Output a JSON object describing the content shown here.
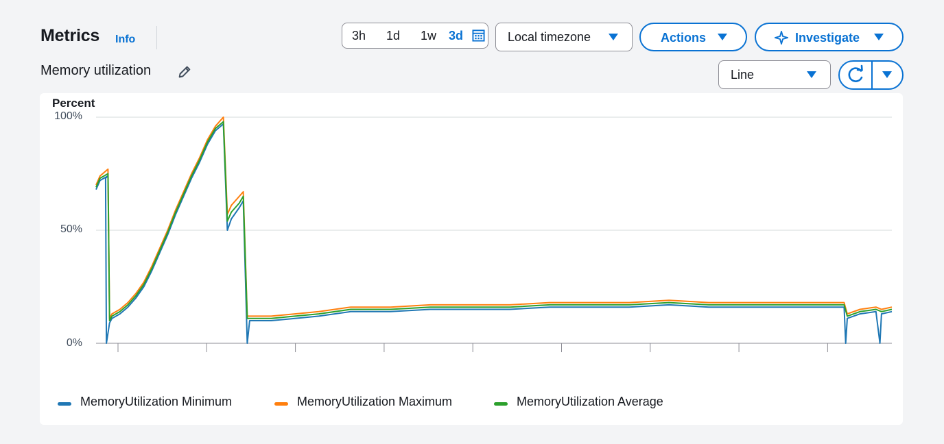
{
  "header": {
    "title": "Metrics",
    "info": "Info",
    "metric_name": "Memory utilization"
  },
  "toolbar": {
    "ranges": [
      "3h",
      "1d",
      "1w",
      "3d"
    ],
    "active_range": "3d",
    "timezone": "Local timezone",
    "actions_label": "Actions",
    "investigate_label": "Investigate",
    "chart_type": "Line"
  },
  "icons": {
    "edit": "pencil-icon",
    "calendar": "calendar-icon",
    "investigate": "sparkle-icon",
    "refresh": "refresh-icon",
    "dropdown": "caret-down-icon"
  },
  "colors": {
    "accent": "#0972d3",
    "minimum": "#1f77b4",
    "maximum": "#ff7f0e",
    "average": "#2ca02c"
  },
  "chart_data": {
    "type": "line",
    "ylabel": "Percent",
    "y_ticks": [
      "100%",
      "50%",
      "0%"
    ],
    "ylim": [
      0,
      100
    ],
    "xlim": [
      0,
      100
    ],
    "grid": true,
    "legend_position": "bottom-left",
    "series": [
      {
        "name": "MemoryUtilization Minimum",
        "color": "#1f77b4",
        "points": [
          [
            0,
            68
          ],
          [
            0.5,
            72
          ],
          [
            1.5,
            74
          ],
          [
            1.2,
            73
          ],
          [
            1.3,
            0
          ],
          [
            1.7,
            9
          ],
          [
            2,
            11
          ],
          [
            3,
            13
          ],
          [
            4,
            16
          ],
          [
            5,
            20
          ],
          [
            6,
            25
          ],
          [
            7,
            32
          ],
          [
            8,
            40
          ],
          [
            9,
            48
          ],
          [
            10,
            57
          ],
          [
            11,
            65
          ],
          [
            12,
            73
          ],
          [
            13,
            80
          ],
          [
            14,
            88
          ],
          [
            15,
            94
          ],
          [
            16,
            97
          ],
          [
            16.5,
            50
          ],
          [
            17,
            55
          ],
          [
            18,
            60
          ],
          [
            18.5,
            63
          ],
          [
            19,
            0
          ],
          [
            19.3,
            10
          ],
          [
            22,
            10
          ],
          [
            25,
            11
          ],
          [
            28,
            12
          ],
          [
            32,
            14
          ],
          [
            37,
            14
          ],
          [
            42,
            15
          ],
          [
            47,
            15
          ],
          [
            52,
            15
          ],
          [
            57,
            16
          ],
          [
            62,
            16
          ],
          [
            67,
            16
          ],
          [
            72,
            17
          ],
          [
            77,
            16
          ],
          [
            82,
            16
          ],
          [
            87,
            16
          ],
          [
            92,
            16
          ],
          [
            94,
            16
          ],
          [
            94.2,
            0
          ],
          [
            94.4,
            11
          ],
          [
            96,
            13
          ],
          [
            98,
            14
          ],
          [
            98.5,
            0
          ],
          [
            98.7,
            13
          ],
          [
            100,
            14
          ]
        ]
      },
      {
        "name": "MemoryUtilization Maximum",
        "color": "#ff7f0e",
        "points": [
          [
            0,
            70
          ],
          [
            0.5,
            74
          ],
          [
            1.5,
            77
          ],
          [
            1.7,
            11
          ],
          [
            2,
            13
          ],
          [
            3,
            15
          ],
          [
            4,
            18
          ],
          [
            5,
            22
          ],
          [
            6,
            27
          ],
          [
            7,
            34
          ],
          [
            8,
            42
          ],
          [
            9,
            50
          ],
          [
            10,
            59
          ],
          [
            11,
            67
          ],
          [
            12,
            75
          ],
          [
            13,
            82
          ],
          [
            14,
            90
          ],
          [
            15,
            96
          ],
          [
            16,
            100
          ],
          [
            16.5,
            57
          ],
          [
            17,
            61
          ],
          [
            18,
            65
          ],
          [
            18.5,
            67
          ],
          [
            19,
            12
          ],
          [
            22,
            12
          ],
          [
            25,
            13
          ],
          [
            28,
            14
          ],
          [
            32,
            16
          ],
          [
            37,
            16
          ],
          [
            42,
            17
          ],
          [
            47,
            17
          ],
          [
            52,
            17
          ],
          [
            57,
            18
          ],
          [
            62,
            18
          ],
          [
            67,
            18
          ],
          [
            72,
            19
          ],
          [
            77,
            18
          ],
          [
            82,
            18
          ],
          [
            87,
            18
          ],
          [
            92,
            18
          ],
          [
            94,
            18
          ],
          [
            94.4,
            13
          ],
          [
            96,
            15
          ],
          [
            98,
            16
          ],
          [
            98.7,
            15
          ],
          [
            100,
            16
          ]
        ]
      },
      {
        "name": "MemoryUtilization Average",
        "color": "#2ca02c",
        "points": [
          [
            0,
            69
          ],
          [
            0.5,
            73
          ],
          [
            1.5,
            75
          ],
          [
            1.7,
            10
          ],
          [
            2,
            12
          ],
          [
            3,
            14
          ],
          [
            4,
            17
          ],
          [
            5,
            21
          ],
          [
            6,
            26
          ],
          [
            7,
            33
          ],
          [
            8,
            41
          ],
          [
            9,
            49
          ],
          [
            10,
            58
          ],
          [
            11,
            66
          ],
          [
            12,
            74
          ],
          [
            13,
            81
          ],
          [
            14,
            89
          ],
          [
            15,
            95
          ],
          [
            16,
            98
          ],
          [
            16.5,
            54
          ],
          [
            17,
            58
          ],
          [
            18,
            62
          ],
          [
            18.5,
            65
          ],
          [
            19,
            11
          ],
          [
            22,
            11
          ],
          [
            25,
            12
          ],
          [
            28,
            13
          ],
          [
            32,
            15
          ],
          [
            37,
            15
          ],
          [
            42,
            16
          ],
          [
            47,
            16
          ],
          [
            52,
            16
          ],
          [
            57,
            17
          ],
          [
            62,
            17
          ],
          [
            67,
            17
          ],
          [
            72,
            18
          ],
          [
            77,
            17
          ],
          [
            82,
            17
          ],
          [
            87,
            17
          ],
          [
            92,
            17
          ],
          [
            94,
            17
          ],
          [
            94.4,
            12
          ],
          [
            96,
            14
          ],
          [
            98,
            15
          ],
          [
            98.7,
            14
          ],
          [
            100,
            15
          ]
        ]
      }
    ]
  }
}
